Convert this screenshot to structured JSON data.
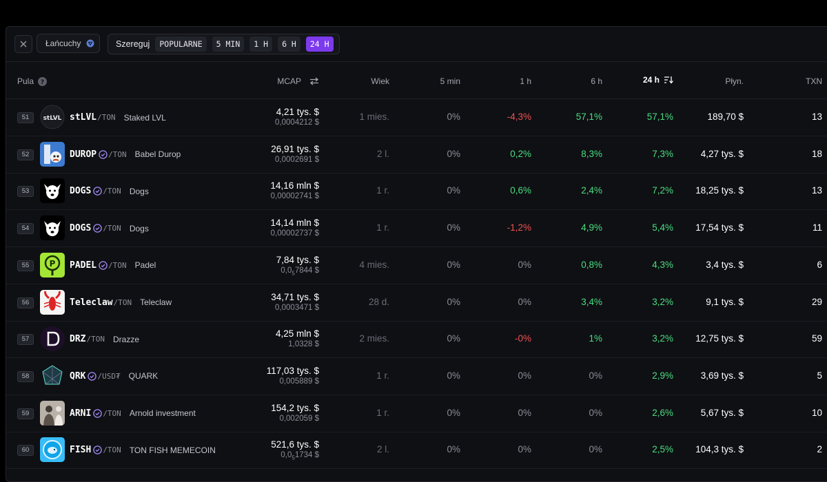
{
  "colors": {
    "background": "#000000",
    "panel": "#0f1014",
    "accent": "#7c3aed",
    "positive": "#4ade80",
    "negative": "#f05252"
  },
  "toolbar": {
    "close_icon": "close-icon",
    "chains_label": "Łańcuchy",
    "sort_label": "Szereguj",
    "sort_options": [
      "POPULARNE",
      "5 MIN",
      "1 H",
      "6 H",
      "24 H"
    ],
    "active_sort": "24 H"
  },
  "table": {
    "headers": {
      "pool": "Pula",
      "mcap": "MCAP",
      "age": "Wiek",
      "m5": "5 min",
      "h1": "1 h",
      "h6": "6 h",
      "h24": "24 h",
      "liquidity": "Płyn.",
      "txn": "TXN"
    },
    "rows": [
      {
        "rank": "51",
        "symbol": "stLVL",
        "quote": "/TON",
        "name": "Staked LVL",
        "verified": false,
        "mcap": "4,21 tys. $",
        "price": "0,0004212 $",
        "age": "1 mies.",
        "m5": "0%",
        "h1": "-4,3%",
        "h6": "57,1%",
        "h24": "57,1%",
        "liquidity": "189,70 $",
        "txn": "13",
        "logo": "stlvl-logo"
      },
      {
        "rank": "52",
        "symbol": "DUROP",
        "quote": "/TON",
        "name": "Babel Durop",
        "verified": true,
        "mcap": "26,91 tys. $",
        "price": "0,0002691 $",
        "age": "2 l.",
        "m5": "0%",
        "h1": "0,2%",
        "h6": "8,3%",
        "h24": "7,3%",
        "liquidity": "4,27 tys. $",
        "txn": "18",
        "logo": "durop-logo"
      },
      {
        "rank": "53",
        "symbol": "DOGS",
        "quote": "/TON",
        "name": "Dogs",
        "verified": true,
        "mcap": "14,16 mln $",
        "price": "0,00002741 $",
        "age": "1 r.",
        "m5": "0%",
        "h1": "0,6%",
        "h6": "2,4%",
        "h24": "7,2%",
        "liquidity": "18,25 tys. $",
        "txn": "13",
        "logo": "dogs-logo"
      },
      {
        "rank": "54",
        "symbol": "DOGS",
        "quote": "/TON",
        "name": "Dogs",
        "verified": true,
        "mcap": "14,14 mln $",
        "price": "0,00002737 $",
        "age": "1 r.",
        "m5": "0%",
        "h1": "-1,2%",
        "h6": "4,9%",
        "h24": "5,4%",
        "liquidity": "17,54 tys. $",
        "txn": "11",
        "logo": "dogs-logo"
      },
      {
        "rank": "55",
        "symbol": "PADEL",
        "quote": "/TON",
        "name": "Padel",
        "verified": true,
        "mcap": "7,84 tys. $",
        "price_pre": "0,0",
        "price_sub": "5",
        "price_post": "7844 $",
        "age": "4 mies.",
        "m5": "0%",
        "h1": "0%",
        "h6": "0,8%",
        "h24": "4,3%",
        "liquidity": "3,4 tys. $",
        "txn": "6",
        "logo": "padel-logo"
      },
      {
        "rank": "56",
        "symbol": "Teleclaw",
        "quote": "/TON",
        "name": "Teleclaw",
        "verified": false,
        "mcap": "34,71 tys. $",
        "price": "0,0003471 $",
        "age": "28 d.",
        "m5": "0%",
        "h1": "0%",
        "h6": "3,4%",
        "h24": "3,2%",
        "liquidity": "9,1 tys. $",
        "txn": "29",
        "logo": "lobster-logo"
      },
      {
        "rank": "57",
        "symbol": "DRZ",
        "quote": "/TON",
        "name": "Drazze",
        "verified": false,
        "mcap": "4,25 mln $",
        "price": "1,0328 $",
        "age": "2 mies.",
        "m5": "0%",
        "h1": "-0%",
        "h6": "1%",
        "h24": "3,2%",
        "liquidity": "12,75 tys. $",
        "txn": "59",
        "logo": "drz-logo"
      },
      {
        "rank": "58",
        "symbol": "QRK",
        "quote": "/USD₮",
        "name": "QUARK",
        "verified": true,
        "mcap": "117,03 tys. $",
        "price": "0,005889 $",
        "age": "1 r.",
        "m5": "0%",
        "h1": "0%",
        "h6": "0%",
        "h24": "2,9%",
        "liquidity": "3,69 tys. $",
        "txn": "5",
        "logo": "quark-logo"
      },
      {
        "rank": "59",
        "symbol": "ARNI",
        "quote": "/TON",
        "name": "Arnold investment",
        "verified": true,
        "mcap": "154,2 tys. $",
        "price": "0,002059 $",
        "age": "1 r.",
        "m5": "0%",
        "h1": "0%",
        "h6": "0%",
        "h24": "2,6%",
        "liquidity": "5,67 tys. $",
        "txn": "10",
        "logo": "arni-logo"
      },
      {
        "rank": "60",
        "symbol": "FISH",
        "quote": "/TON",
        "name": "TON FISH MEMECOIN",
        "verified": true,
        "mcap": "521,6 tys. $",
        "price_pre": "0,0",
        "price_sub": "5",
        "price_post": "1734 $",
        "age": "2 l.",
        "m5": "0%",
        "h1": "0%",
        "h6": "0%",
        "h24": "2,5%",
        "liquidity": "104,3 tys. $",
        "txn": "2",
        "logo": "fish-logo"
      }
    ]
  }
}
